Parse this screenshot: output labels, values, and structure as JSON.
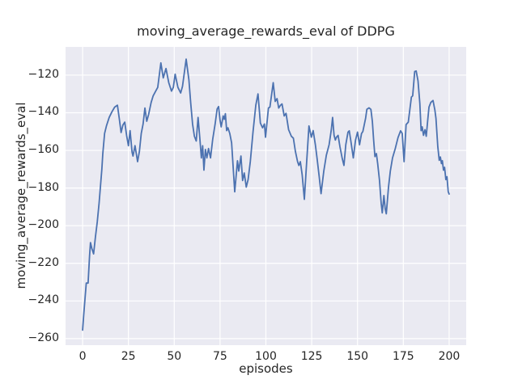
{
  "figure": {
    "background": "#ffffff"
  },
  "chart_data": {
    "type": "line",
    "title": "moving_average_rewards_eval of DDPG",
    "xlabel": "episodes",
    "ylabel": "moving_average_rewards_eval",
    "xlim": [
      -9.3,
      209.3
    ],
    "ylim": [
      -263.5,
      -105.0
    ],
    "grid": true,
    "legend_position": "none",
    "xticks": {
      "values": [
        0,
        25,
        50,
        75,
        100,
        125,
        150,
        175,
        200
      ],
      "labels": [
        "0",
        "25",
        "50",
        "75",
        "100",
        "125",
        "150",
        "175",
        "200"
      ]
    },
    "yticks": {
      "values": [
        -120,
        -140,
        -160,
        -180,
        -200,
        -220,
        -240,
        -260
      ],
      "labels": [
        "−120",
        "−140",
        "−160",
        "−180",
        "−200",
        "−220",
        "−240",
        "−260"
      ]
    },
    "style": {
      "axes_background": "#eaeaf2",
      "grid_color": "#ffffff",
      "text_color": "#262626",
      "line_color": "#4c72b0",
      "line_width": 1.8
    },
    "series": [
      {
        "name": "moving_average_rewards_eval",
        "color": "#4c72b0",
        "points": [
          [
            0,
            -255.5
          ],
          [
            0.6,
            -247.5
          ],
          [
            1.3,
            -239
          ],
          [
            2,
            -230.5
          ],
          [
            3,
            -230.5
          ],
          [
            3.8,
            -216
          ],
          [
            4.3,
            -209
          ],
          [
            5,
            -212
          ],
          [
            6,
            -215
          ],
          [
            7,
            -206
          ],
          [
            8,
            -198
          ],
          [
            9,
            -188
          ],
          [
            10,
            -176
          ],
          [
            10.5,
            -170
          ],
          [
            11,
            -162
          ],
          [
            12,
            -151
          ],
          [
            13,
            -147
          ],
          [
            14.5,
            -142.5
          ],
          [
            16,
            -139.5
          ],
          [
            17.5,
            -137
          ],
          [
            19,
            -136
          ],
          [
            20,
            -143
          ],
          [
            21,
            -150.5
          ],
          [
            22,
            -146.5
          ],
          [
            23,
            -145
          ],
          [
            24,
            -152
          ],
          [
            25,
            -157.5
          ],
          [
            25.9,
            -149.5
          ],
          [
            27,
            -161
          ],
          [
            27.5,
            -163
          ],
          [
            28.6,
            -157.5
          ],
          [
            30,
            -166
          ],
          [
            31,
            -160.5
          ],
          [
            32,
            -151
          ],
          [
            33,
            -146
          ],
          [
            34,
            -137.5
          ],
          [
            35,
            -144.5
          ],
          [
            36,
            -141
          ],
          [
            37.4,
            -134.5
          ],
          [
            38.5,
            -131
          ],
          [
            40,
            -128.3
          ],
          [
            41,
            -126.5
          ],
          [
            42.7,
            -113.5
          ],
          [
            44,
            -121.5
          ],
          [
            45.5,
            -116.5
          ],
          [
            47,
            -124
          ],
          [
            48.5,
            -128.5
          ],
          [
            49.5,
            -126.5
          ],
          [
            50.5,
            -119.5
          ],
          [
            52,
            -126.5
          ],
          [
            53.5,
            -129.5
          ],
          [
            54.5,
            -126
          ],
          [
            56.5,
            -111.5
          ],
          [
            58,
            -122.5
          ],
          [
            59,
            -135
          ],
          [
            60,
            -146
          ],
          [
            61,
            -152.5
          ],
          [
            62,
            -155
          ],
          [
            63,
            -142.5
          ],
          [
            64,
            -154
          ],
          [
            64.8,
            -164
          ],
          [
            65.5,
            -157.5
          ],
          [
            66.2,
            -170.5
          ],
          [
            67,
            -159.5
          ],
          [
            67.8,
            -164
          ],
          [
            68.7,
            -159
          ],
          [
            69.8,
            -164
          ],
          [
            71,
            -154
          ],
          [
            72.3,
            -146
          ],
          [
            73.4,
            -138
          ],
          [
            74.2,
            -136.7
          ],
          [
            75,
            -144
          ],
          [
            75.6,
            -147.5
          ],
          [
            76.7,
            -141.7
          ],
          [
            77.3,
            -143.5
          ],
          [
            77.9,
            -140.5
          ],
          [
            78.6,
            -149.5
          ],
          [
            79.3,
            -148
          ],
          [
            80.3,
            -151
          ],
          [
            81.3,
            -156
          ],
          [
            83,
            -182
          ],
          [
            84.5,
            -165.5
          ],
          [
            85.2,
            -171
          ],
          [
            86.4,
            -163
          ],
          [
            87.3,
            -176
          ],
          [
            88.2,
            -172
          ],
          [
            89.3,
            -179.5
          ],
          [
            90.3,
            -175.5
          ],
          [
            91.5,
            -166
          ],
          [
            93,
            -150
          ],
          [
            94.5,
            -136
          ],
          [
            95.7,
            -130
          ],
          [
            97,
            -145.5
          ],
          [
            98.2,
            -148
          ],
          [
            99.2,
            -146
          ],
          [
            99.8,
            -153
          ],
          [
            101.4,
            -137.5
          ],
          [
            102.2,
            -137
          ],
          [
            104,
            -124
          ],
          [
            105.1,
            -134
          ],
          [
            106.1,
            -132.5
          ],
          [
            107,
            -137.5
          ],
          [
            108,
            -136
          ],
          [
            108.8,
            -135.3
          ],
          [
            110,
            -141.7
          ],
          [
            111,
            -140.3
          ],
          [
            112.4,
            -149
          ],
          [
            113.9,
            -152.5
          ],
          [
            115,
            -153.5
          ],
          [
            116.1,
            -160.5
          ],
          [
            117.3,
            -166
          ],
          [
            118,
            -168
          ],
          [
            118.8,
            -166
          ],
          [
            119.8,
            -173
          ],
          [
            121,
            -186
          ],
          [
            122.2,
            -167
          ],
          [
            123.5,
            -147
          ],
          [
            124.8,
            -153
          ],
          [
            125.8,
            -149.5
          ],
          [
            127,
            -157
          ],
          [
            127.9,
            -164
          ],
          [
            129.1,
            -174
          ],
          [
            130.1,
            -183
          ],
          [
            131.6,
            -171
          ],
          [
            133,
            -162.5
          ],
          [
            134.5,
            -157
          ],
          [
            135.7,
            -149
          ],
          [
            136.4,
            -142.5
          ],
          [
            137.2,
            -152
          ],
          [
            137.9,
            -154.5
          ],
          [
            138.5,
            -153
          ],
          [
            139.4,
            -152
          ],
          [
            140.4,
            -158
          ],
          [
            141.6,
            -164
          ],
          [
            142.6,
            -168
          ],
          [
            143.6,
            -157
          ],
          [
            144.8,
            -150.3
          ],
          [
            145.5,
            -149.6
          ],
          [
            146.3,
            -154.6
          ],
          [
            147.7,
            -164
          ],
          [
            148.9,
            -154.6
          ],
          [
            150,
            -150.3
          ],
          [
            151.1,
            -157
          ],
          [
            152.2,
            -151
          ],
          [
            152.9,
            -150
          ],
          [
            154.4,
            -143
          ],
          [
            155.1,
            -138.2
          ],
          [
            156.3,
            -137.4
          ],
          [
            157.3,
            -138.2
          ],
          [
            158.1,
            -144.6
          ],
          [
            158.8,
            -154.6
          ],
          [
            159.5,
            -163.3
          ],
          [
            160.3,
            -161.7
          ],
          [
            161,
            -167
          ],
          [
            162,
            -176
          ],
          [
            162.9,
            -188
          ],
          [
            163.5,
            -193.2
          ],
          [
            164.4,
            -184
          ],
          [
            165.1,
            -191
          ],
          [
            165.7,
            -193.7
          ],
          [
            166.9,
            -179.6
          ],
          [
            167.9,
            -171
          ],
          [
            169.1,
            -164
          ],
          [
            170.6,
            -159
          ],
          [
            172.1,
            -153.2
          ],
          [
            173.5,
            -149.6
          ],
          [
            174.4,
            -151
          ],
          [
            175.4,
            -166
          ],
          [
            176.5,
            -146.3
          ],
          [
            177.7,
            -145
          ],
          [
            179.4,
            -131.7
          ],
          [
            180.1,
            -131
          ],
          [
            181.2,
            -118.1
          ],
          [
            182,
            -117.8
          ],
          [
            183,
            -123
          ],
          [
            184,
            -135
          ],
          [
            184.7,
            -149.5
          ],
          [
            185.3,
            -147.5
          ],
          [
            186,
            -152
          ],
          [
            186.8,
            -149
          ],
          [
            187.5,
            -152.5
          ],
          [
            188.3,
            -144
          ],
          [
            189,
            -137
          ],
          [
            190,
            -134.5
          ],
          [
            191.2,
            -133.5
          ],
          [
            192.2,
            -138.5
          ],
          [
            192.8,
            -143
          ],
          [
            193.8,
            -158
          ],
          [
            194.6,
            -165.3
          ],
          [
            195.2,
            -163.5
          ],
          [
            195.8,
            -167
          ],
          [
            196.3,
            -165.5
          ],
          [
            196.9,
            -170.5
          ],
          [
            197.5,
            -169
          ],
          [
            198.2,
            -175.5
          ],
          [
            198.8,
            -174
          ],
          [
            199.5,
            -182
          ],
          [
            200,
            -183.2
          ]
        ]
      }
    ]
  }
}
